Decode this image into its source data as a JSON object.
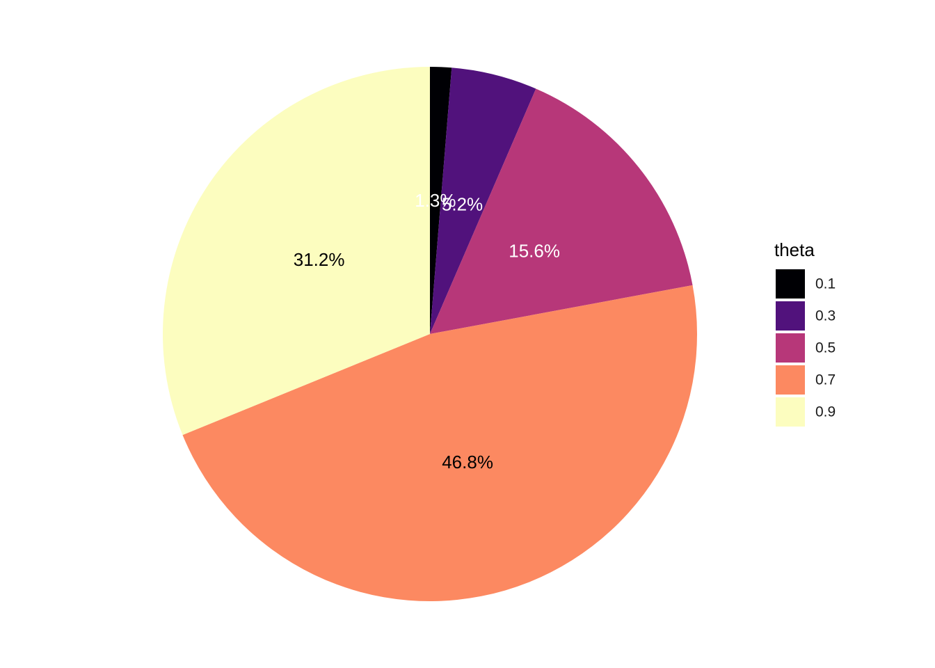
{
  "chart_data": {
    "type": "pie",
    "legend": {
      "title": "theta",
      "position": "right"
    },
    "slices": [
      {
        "category": "0.1",
        "value": 1.3,
        "label": "1.3%",
        "color": "#000004",
        "label_color": "#ffffff"
      },
      {
        "category": "0.3",
        "value": 5.2,
        "label": "5.2%",
        "color": "#51127c",
        "label_color": "#ffffff"
      },
      {
        "category": "0.5",
        "value": 15.6,
        "label": "15.6%",
        "color": "#b73779",
        "label_color": "#ffffff"
      },
      {
        "category": "0.7",
        "value": 46.8,
        "label": "46.8%",
        "color": "#fc8961",
        "label_color": "#000000"
      },
      {
        "category": "0.9",
        "value": 31.2,
        "label": "31.2%",
        "color": "#fcfdbf",
        "label_color": "#000000"
      }
    ],
    "direction": "clockwise",
    "start_angle": "12 o'clock"
  }
}
